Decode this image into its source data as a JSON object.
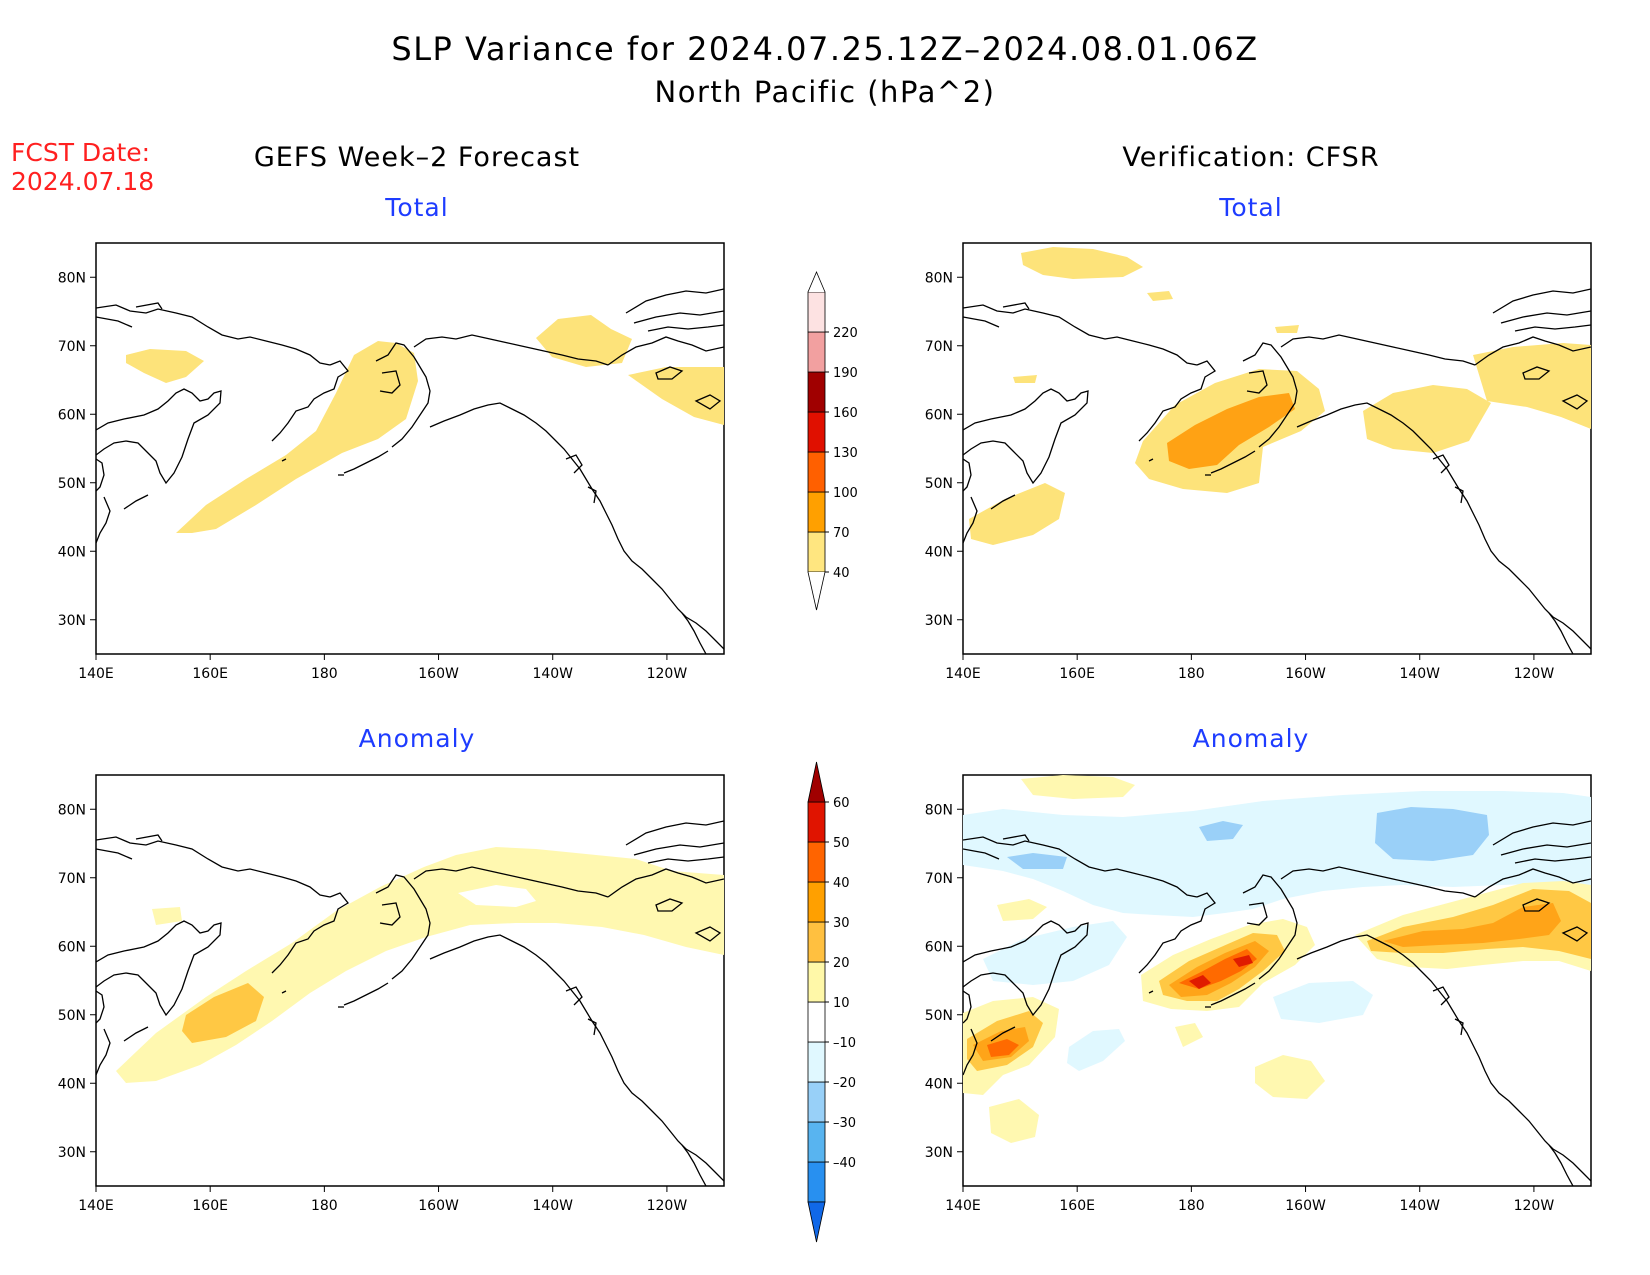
{
  "title_line1": "SLP Variance for 2024.07.25.12Z–2024.08.01.06Z",
  "title_line2": "North Pacific (hPa^2)",
  "fcst_label": "FCST Date:",
  "fcst_date": "2024.07.18",
  "left_column_title": "GEFS Week–2 Forecast",
  "right_column_title": "Verification: CFSR",
  "panels": {
    "gefs_total": {
      "title": "Total"
    },
    "cfsr_total": {
      "title": "Total"
    },
    "gefs_anomaly": {
      "title": "Anomaly"
    },
    "cfsr_anomaly": {
      "title": "Anomaly"
    }
  },
  "axes": {
    "lon_labels": [
      "140E",
      "160E",
      "180",
      "160W",
      "140W",
      "120W"
    ],
    "lat_labels": [
      "30N",
      "40N",
      "50N",
      "60N",
      "70N",
      "80N"
    ],
    "lon_range": [
      "140E",
      "110W"
    ],
    "lat_range": [
      "25N",
      "85N"
    ]
  },
  "total_colorbar": {
    "levels": [
      "40",
      "70",
      "100",
      "130",
      "160",
      "190",
      "220"
    ],
    "colors": [
      "#ffe680",
      "#ffa000",
      "#ff6000",
      "#e01000",
      "#a00000",
      "#f2a0a0",
      "#fde2e2"
    ]
  },
  "anomaly_colorbar": {
    "levels": [
      "–40",
      "–30",
      "–20",
      "–10",
      "10",
      "20",
      "30",
      "40",
      "50",
      "60"
    ],
    "colors": [
      "#1068e8",
      "#2890f0",
      "#58b4f0",
      "#98d0f8",
      "#e0f8ff",
      "#ffffff",
      "#fff8a8",
      "#ffc040",
      "#ffa000",
      "#ff6400",
      "#e01400",
      "#a00000"
    ]
  },
  "colors": {
    "fill_40_70": "#fde37a",
    "fill_70_100": "#ffa214",
    "anom_10_20": "#fff8b0",
    "anom_20_30": "#ffc844",
    "anom_30_40": "#ffa418",
    "anom_40_50": "#ff6a00",
    "anom_50_60": "#e01c00",
    "anom_60_plus": "#a80000",
    "anom_neg_10": "#e0f8ff",
    "anom_neg_20": "#9ad0f8",
    "coast": "#000000",
    "title_blue": "#1e3cff",
    "fcst_red": "#ff2020"
  }
}
